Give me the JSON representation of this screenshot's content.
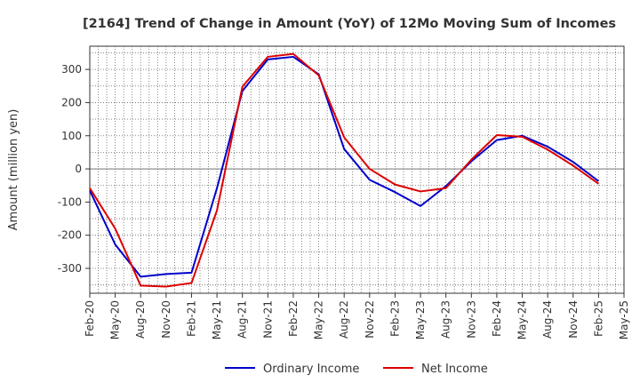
{
  "chart_data": {
    "type": "line",
    "title": "[2164]  Trend of Change in Amount (YoY) of 12Mo Moving Sum of Incomes",
    "xlabel": "",
    "ylabel": "Amount (million yen)",
    "ylim": [
      -375,
      370
    ],
    "yticks": [
      -300,
      -200,
      -100,
      0,
      100,
      200,
      300
    ],
    "categories": [
      "Feb-20",
      "May-20",
      "Aug-20",
      "Nov-20",
      "Feb-21",
      "May-21",
      "Aug-21",
      "Nov-21",
      "Feb-22",
      "May-22",
      "Aug-22",
      "Nov-22",
      "Feb-23",
      "May-23",
      "Aug-23",
      "Nov-23",
      "Feb-24",
      "May-24",
      "Aug-24",
      "Nov-24",
      "Feb-25",
      "May-25"
    ],
    "grid": true,
    "legend_position": "bottom",
    "series": [
      {
        "name": "Ordinary Income",
        "color": "#0000cc",
        "values": [
          -65,
          -228,
          -325,
          -317,
          -313,
          -58,
          235,
          330,
          338,
          285,
          60,
          -33,
          -70,
          -112,
          -52,
          23,
          87,
          100,
          67,
          21,
          -37,
          null
        ]
      },
      {
        "name": "Net Income",
        "color": "#dd0000",
        "values": [
          -58,
          -180,
          -352,
          -355,
          -344,
          -125,
          248,
          338,
          347,
          282,
          95,
          0,
          -47,
          -68,
          -58,
          28,
          102,
          97,
          58,
          10,
          -45,
          null
        ]
      }
    ]
  }
}
